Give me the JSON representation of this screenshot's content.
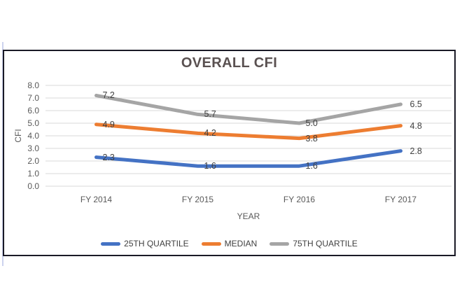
{
  "decorations": {
    "frame_border_color": "#1a1a26",
    "margin_line_color": "#ccd2ee",
    "background": "#ffffff"
  },
  "chart_data": {
    "type": "line",
    "title": "OVERALL CFI",
    "xlabel": "YEAR",
    "ylabel": "CFI",
    "categories": [
      "FY 2014",
      "FY 2015",
      "FY 2016",
      "FY 2017"
    ],
    "series": [
      {
        "name": "25TH QUARTILE",
        "color": "#4472C4",
        "values": [
          2.3,
          1.6,
          1.6,
          2.8
        ]
      },
      {
        "name": "MEDIAN",
        "color": "#ED7D31",
        "values": [
          4.9,
          4.2,
          3.8,
          4.8
        ]
      },
      {
        "name": "75TH QUARTILE",
        "color": "#A5A5A5",
        "values": [
          7.2,
          5.7,
          5.0,
          6.5
        ]
      }
    ],
    "ylim": [
      0,
      8
    ],
    "ytick_step": 1,
    "yticks": [
      "0.0",
      "1.0",
      "2.0",
      "3.0",
      "4.0",
      "5.0",
      "6.0",
      "7.0",
      "8.0"
    ],
    "grid": true,
    "data_labels": true,
    "legend_position": "bottom",
    "colors": {
      "gridline": "#d9d9d9",
      "tick_label": "#595959",
      "data_label": "#404040",
      "title": "#5a5151",
      "legend_label": "#404040"
    }
  }
}
